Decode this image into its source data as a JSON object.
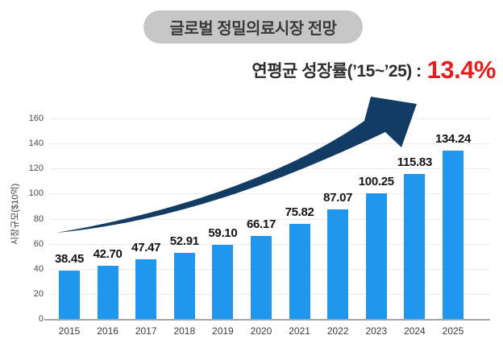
{
  "title": "글로벌 정밀의료시장 전망",
  "subtitle": {
    "label": "연평균 성장률(’15~’25) :",
    "highlight": "13.4%"
  },
  "colors": {
    "bar": "#1f97ee",
    "arrow": "#133c64",
    "highlight": "#e41d1d",
    "title_pill_bg": "#c6c6c6"
  },
  "chart_data": {
    "type": "bar",
    "categories": [
      "2015",
      "2016",
      "2017",
      "2018",
      "2019",
      "2020",
      "2021",
      "2022",
      "2023",
      "2024",
      "2025"
    ],
    "values": [
      38.45,
      42.7,
      47.47,
      52.91,
      59.1,
      66.17,
      75.82,
      87.07,
      100.25,
      115.83,
      134.24
    ],
    "title": "글로벌 정밀의료시장 전망",
    "xlabel": "",
    "ylabel": "시장규모($10억)",
    "ylim": [
      0,
      160
    ],
    "ytick_step": 20,
    "grid": true,
    "legend": "none",
    "value_label_decimals": 2,
    "annotation": "연평균 성장률(’15~’25) : 13.4%"
  }
}
